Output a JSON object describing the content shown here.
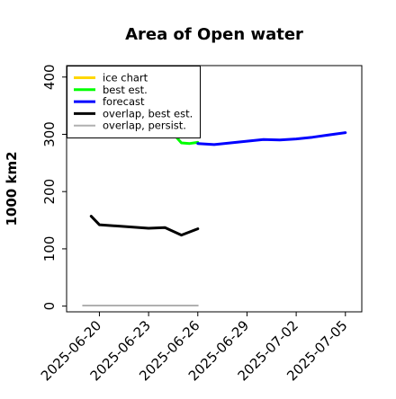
{
  "chart_data": {
    "type": "line",
    "title": "Area of Open water",
    "xlabel": "",
    "ylabel": "1000 km2",
    "xlim": [
      "2025-06-18",
      "2025-07-06"
    ],
    "ylim": [
      -10,
      420
    ],
    "y_ticks": [
      0,
      100,
      200,
      300,
      400
    ],
    "x_ticks": [
      "2025-06-20",
      "2025-06-23",
      "2025-06-26",
      "2025-06-29",
      "2025-07-02",
      "2025-07-05"
    ],
    "x_tick_colors": [
      "#000000",
      "#000000",
      "#008000",
      "#000000",
      "#000000",
      "#000000"
    ],
    "grid": false,
    "legend_position": "upper-left",
    "series": [
      {
        "name": "ice chart",
        "color": "#ffd700",
        "x": [],
        "y": []
      },
      {
        "name": "best est.",
        "color": "#00ff00",
        "x": [
          "2025-06-24 18:00",
          "2025-06-25 00:00",
          "2025-06-25 12:00",
          "2025-06-26 00:00"
        ],
        "y": [
          293,
          285,
          284,
          286
        ]
      },
      {
        "name": "forecast",
        "color": "#0000ff",
        "x": [
          "2025-06-26 00:00",
          "2025-06-27 00:00",
          "2025-06-28 00:00",
          "2025-06-29 00:00",
          "2025-06-30 00:00",
          "2025-07-01 00:00",
          "2025-07-02 00:00",
          "2025-07-03 00:00",
          "2025-07-04 00:00",
          "2025-07-05 00:00"
        ],
        "y": [
          284,
          282,
          285,
          288,
          291,
          290,
          292,
          295,
          299,
          303
        ]
      },
      {
        "name": "overlap, best est.",
        "color": "#000000",
        "x": [
          "2025-06-19 12:00",
          "2025-06-20 00:00",
          "2025-06-23 00:00",
          "2025-06-24 00:00",
          "2025-06-25 00:00",
          "2025-06-26 00:00"
        ],
        "y": [
          157,
          142,
          136,
          137,
          124,
          135
        ]
      },
      {
        "name": "overlap, persist.",
        "color": "#b0b0b0",
        "x": [
          "2025-06-19 00:00",
          "2025-06-20 00:00",
          "2025-06-23 00:00",
          "2025-06-26 00:00"
        ],
        "y": [
          1,
          1,
          1,
          1
        ]
      }
    ],
    "legend": [
      "ice chart",
      "best est.",
      "forecast",
      "overlap, best est.",
      "overlap, persist."
    ]
  }
}
